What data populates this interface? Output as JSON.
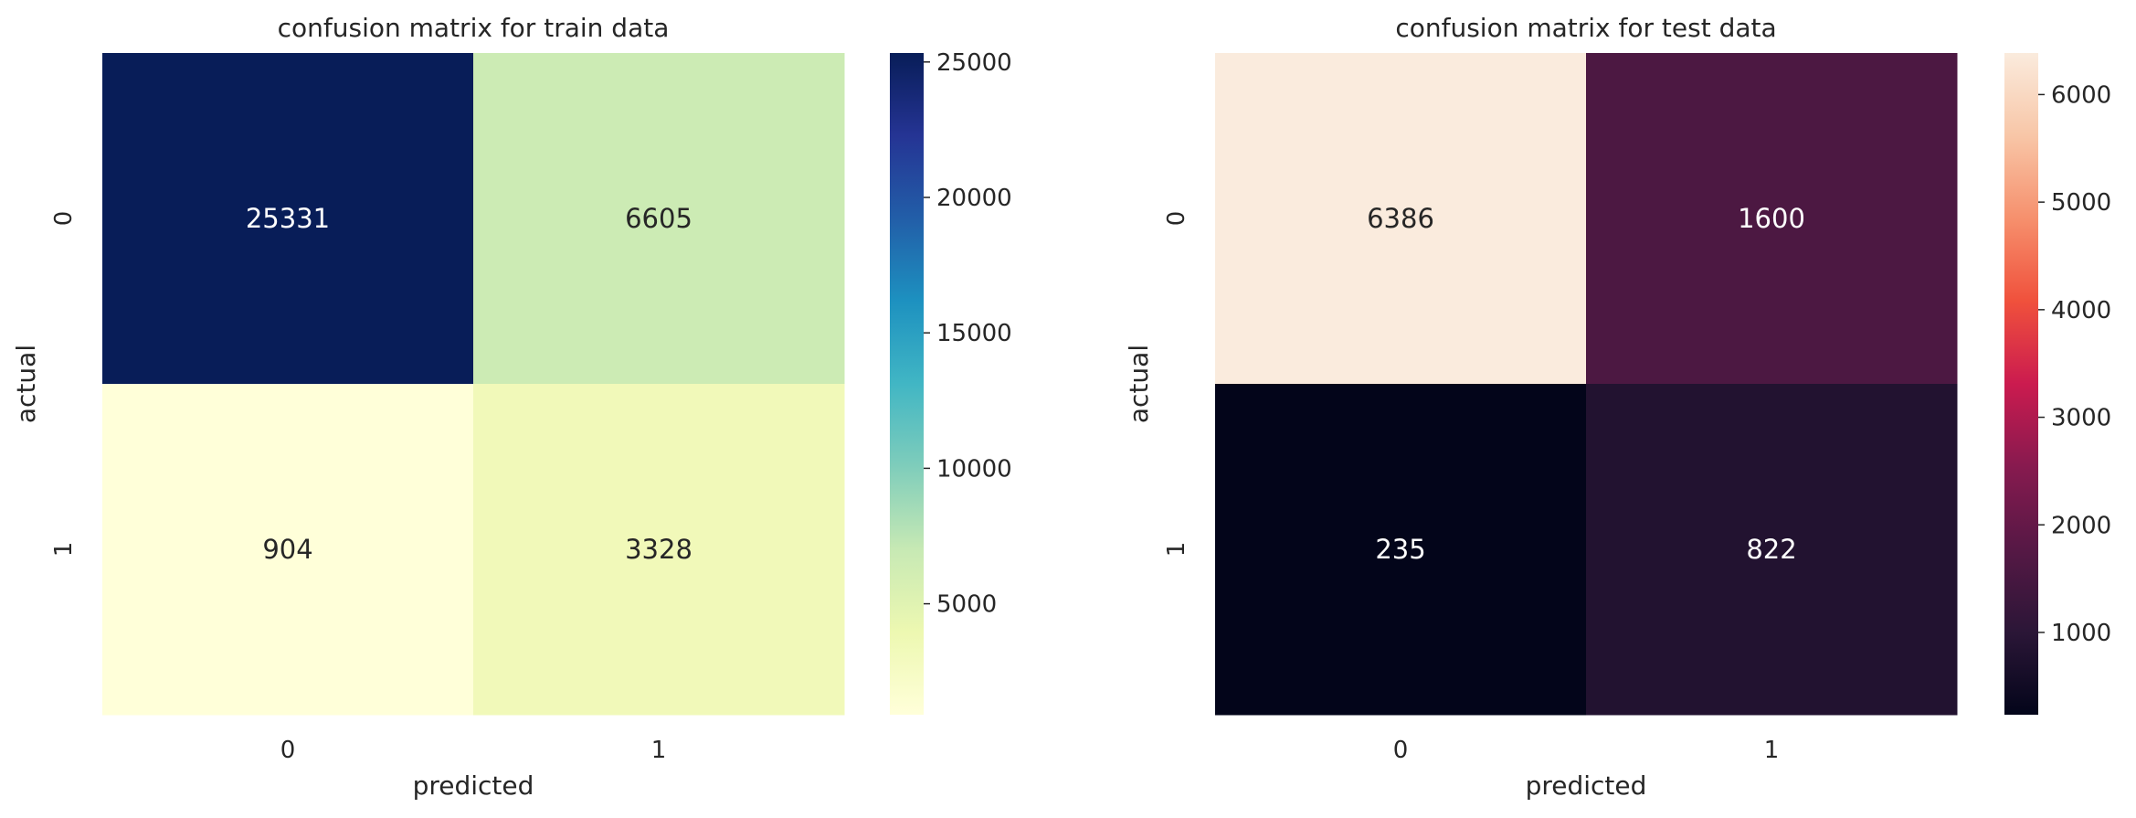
{
  "chart_data": [
    {
      "type": "heatmap",
      "title": "confusion matrix for train data",
      "xlabel": "predicted",
      "ylabel": "actual",
      "x_categories": [
        "0",
        "1"
      ],
      "y_categories": [
        "0",
        "1"
      ],
      "values": [
        [
          25331,
          6605
        ],
        [
          904,
          3328
        ]
      ],
      "colormap": "YlGnBu",
      "colorbar": {
        "range": [
          904,
          25331
        ],
        "ticks": [
          5000,
          10000,
          15000,
          20000,
          25000
        ],
        "tick_labels": [
          "5000",
          "10000",
          "15000",
          "20000",
          "25000"
        ]
      },
      "grid": false
    },
    {
      "type": "heatmap",
      "title": "confusion matrix for test data",
      "xlabel": "predicted",
      "ylabel": "actual",
      "x_categories": [
        "0",
        "1"
      ],
      "y_categories": [
        "0",
        "1"
      ],
      "values": [
        [
          6386,
          1600
        ],
        [
          235,
          822
        ]
      ],
      "colormap": "rocket",
      "colorbar": {
        "range": [
          235,
          6386
        ],
        "ticks": [
          1000,
          2000,
          3000,
          4000,
          5000,
          6000
        ],
        "tick_labels": [
          "1000",
          "2000",
          "3000",
          "4000",
          "5000",
          "6000"
        ]
      },
      "grid": false
    }
  ]
}
